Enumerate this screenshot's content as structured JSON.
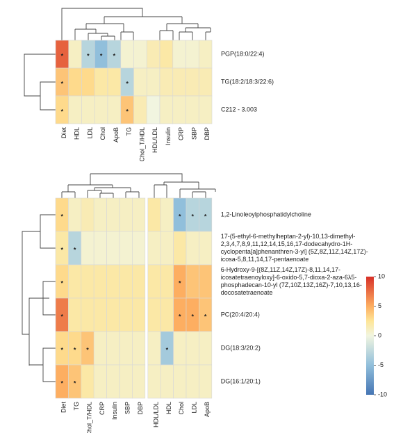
{
  "chart_data": [
    {
      "type": "heatmap",
      "columns": [
        "Diet",
        "HDL",
        "LDL",
        "Chol",
        "ApoB",
        "TG",
        "Chol_T/HDL",
        "HDL/LDL",
        "Insulin",
        "CRP",
        "SBP",
        "DBP"
      ],
      "rows": [
        [
          "PGP(18:0/22:4)"
        ],
        [
          "TG(18:2/18:3/22:6)"
        ],
        [
          "C212 - 3.003"
        ]
      ],
      "values": [
        [
          8,
          1,
          -3,
          -5,
          -3,
          0.5,
          0.5,
          1.5,
          2,
          0.5,
          0.5,
          1
        ],
        [
          4,
          3,
          3,
          2,
          2,
          -3,
          1,
          1,
          1.5,
          1.5,
          1.5,
          1.5
        ],
        [
          3,
          1,
          1,
          1,
          1,
          4,
          1.5,
          0,
          1,
          1,
          1,
          1
        ]
      ],
      "annotations": [
        [
          "*",
          null,
          "*",
          "*",
          "*",
          null,
          null,
          null,
          null,
          null,
          null,
          null
        ],
        [
          "*",
          null,
          null,
          null,
          null,
          "*",
          null,
          null,
          null,
          null,
          null,
          null
        ],
        [
          "*",
          null,
          null,
          null,
          null,
          "*",
          null,
          null,
          null,
          null,
          null,
          null
        ]
      ],
      "zlim": [
        -10,
        10
      ],
      "colorscale": [
        [
          -10,
          "#4575b4"
        ],
        [
          -5,
          "#91bfdb"
        ],
        [
          0,
          "#f1f5e0"
        ],
        [
          2.5,
          "#fee597"
        ],
        [
          5,
          "#fdae61"
        ],
        [
          10,
          "#d73027"
        ]
      ]
    },
    {
      "type": "heatmap",
      "columns": [
        "Diet",
        "TG",
        "Chol_T/HDL",
        "CRP",
        "Insulin",
        "SBP",
        "DBP",
        "HDL/LDL",
        "HDL",
        "Chol",
        "LDL",
        "ApoB"
      ],
      "rows": [
        [
          "1,2-Linoleoylphosphatidylcholine"
        ],
        [
          "17-(5-ethyl-6-methylheptan-2-yl)-10,13-dimethyl-",
          "2,3,4,7,8,9,11,12,14,15,16,17-dodecahydro-1H-",
          "cyclopenta[a]phenanthren-3-yl] (5Z,8Z,11Z,14Z,17Z)-",
          "icosa-5,8,11,14,17-pentaenoate"
        ],
        [
          "6-Hydroxy-9-[(8Z,11Z,14Z,17Z)-8,11,14,17-",
          "icosatetraenoyloxy]-6-oxido-5,7-dioxa-2-aza-6λ5-",
          "phosphadecan-10-yl (7Z,10Z,13Z,16Z)-7,10,13,16-",
          "docosatetraenoate"
        ],
        [
          "PC(20:4/20:4)"
        ],
        [
          "DG(18:3/20:2)"
        ],
        [
          "DG(16:1/20:1)"
        ]
      ],
      "values": [
        [
          3,
          1,
          1.5,
          1,
          1,
          1,
          1,
          2,
          1,
          -5,
          -3,
          -3
        ],
        [
          2,
          -3,
          0.5,
          0.5,
          0.5,
          0.5,
          0.5,
          1,
          1,
          2,
          1,
          1
        ],
        [
          3,
          2,
          2,
          2,
          2,
          2,
          2,
          2,
          2,
          5,
          4,
          4
        ],
        [
          7,
          2,
          2,
          2,
          2,
          2,
          2,
          2,
          2,
          5,
          5,
          4
        ],
        [
          3,
          3,
          4,
          1,
          1,
          1,
          1,
          1,
          -4,
          1,
          1,
          1
        ],
        [
          5,
          4,
          2,
          1,
          1,
          1,
          1,
          1,
          1,
          1,
          1,
          1
        ]
      ],
      "annotations": [
        [
          "*",
          null,
          null,
          null,
          null,
          null,
          null,
          null,
          null,
          "*",
          "*",
          "*"
        ],
        [
          "*",
          "*",
          null,
          null,
          null,
          null,
          null,
          null,
          null,
          null,
          null,
          null
        ],
        [
          "*",
          null,
          null,
          null,
          null,
          null,
          null,
          null,
          null,
          "*",
          null,
          null
        ],
        [
          "*",
          null,
          null,
          null,
          null,
          null,
          null,
          null,
          null,
          "*",
          "*",
          "*"
        ],
        [
          "*",
          "*",
          "*",
          null,
          null,
          null,
          null,
          null,
          "*",
          null,
          null,
          null
        ],
        [
          "*",
          "*",
          null,
          null,
          null,
          null,
          null,
          null,
          null,
          null,
          null,
          null
        ]
      ],
      "zlim": [
        -10,
        10
      ],
      "zticks": [
        10,
        5,
        0,
        -5,
        -10
      ],
      "colorscale": [
        [
          -10,
          "#4575b4"
        ],
        [
          -5,
          "#91bfdb"
        ],
        [
          0,
          "#f1f5e0"
        ],
        [
          2.5,
          "#fee597"
        ],
        [
          5,
          "#fdae61"
        ],
        [
          10,
          "#d73027"
        ]
      ]
    }
  ]
}
